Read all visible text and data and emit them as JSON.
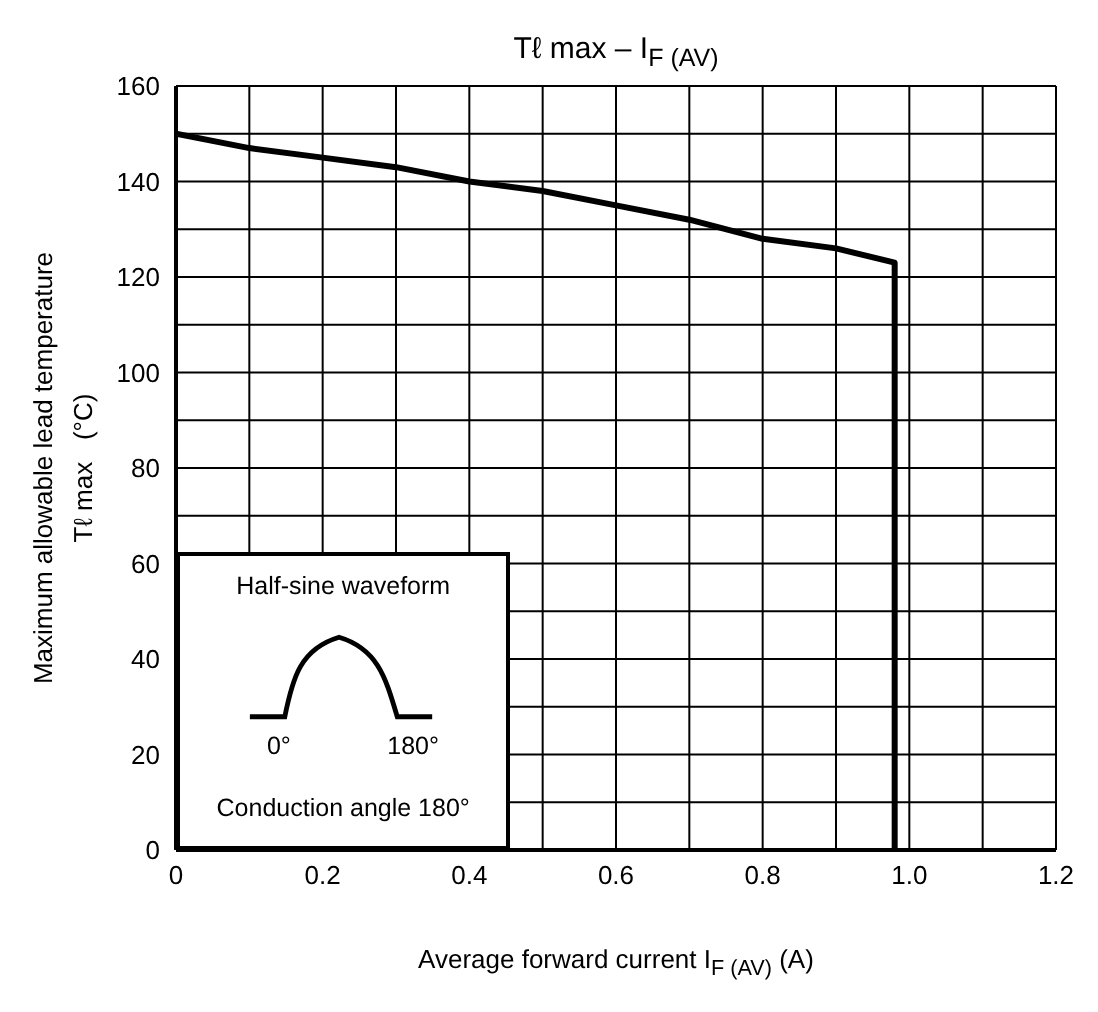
{
  "chart_data": {
    "type": "line",
    "title": "Tℓ max – I$_{F (AV)}$",
    "xlabel": "Average forward current   I$_{F (AV)}$   (A)",
    "ylabel": "Maximum allowable lead temperature\nTℓ max   (°C)",
    "x": [
      0,
      0.1,
      0.2,
      0.3,
      0.4,
      0.5,
      0.6,
      0.7,
      0.8,
      0.9,
      0.98,
      0.98
    ],
    "series": [
      {
        "color": "#000000",
        "values": [
          150,
          147,
          145,
          143,
          140,
          138,
          135,
          132,
          128,
          126,
          123,
          0
        ]
      }
    ],
    "xlim": [
      0,
      1.2
    ],
    "xticks": [
      0,
      {
        "value": 0.1,
        "label": null
      },
      0.2,
      {
        "value": 0.3,
        "label": null
      },
      0.4,
      {
        "value": 0.5,
        "label": null
      },
      0.6,
      {
        "value": 0.7,
        "label": null
      },
      0.8,
      {
        "value": 0.9,
        "label": null
      },
      {
        "value": 1,
        "label": "1.0"
      },
      {
        "value": 1.1,
        "label": null
      },
      1.2
    ],
    "ylim": [
      0,
      160
    ],
    "yticks": [
      0,
      {
        "value": 10,
        "label": null
      },
      20,
      {
        "value": 30,
        "label": null
      },
      40,
      {
        "value": 50,
        "label": null
      },
      60,
      {
        "value": 70,
        "label": null
      },
      80,
      {
        "value": 90,
        "label": null
      },
      100,
      {
        "value": 110,
        "label": null
      },
      120,
      {
        "value": 130,
        "label": null
      },
      140,
      {
        "value": 150,
        "label": null
      },
      160
    ],
    "grid": true,
    "marker": "none",
    "line_style": "solid",
    "legend": false,
    "annotations": [
      "Half-sine waveform",
      "0°",
      "180°",
      "Conduction angle 180°"
    ]
  }
}
